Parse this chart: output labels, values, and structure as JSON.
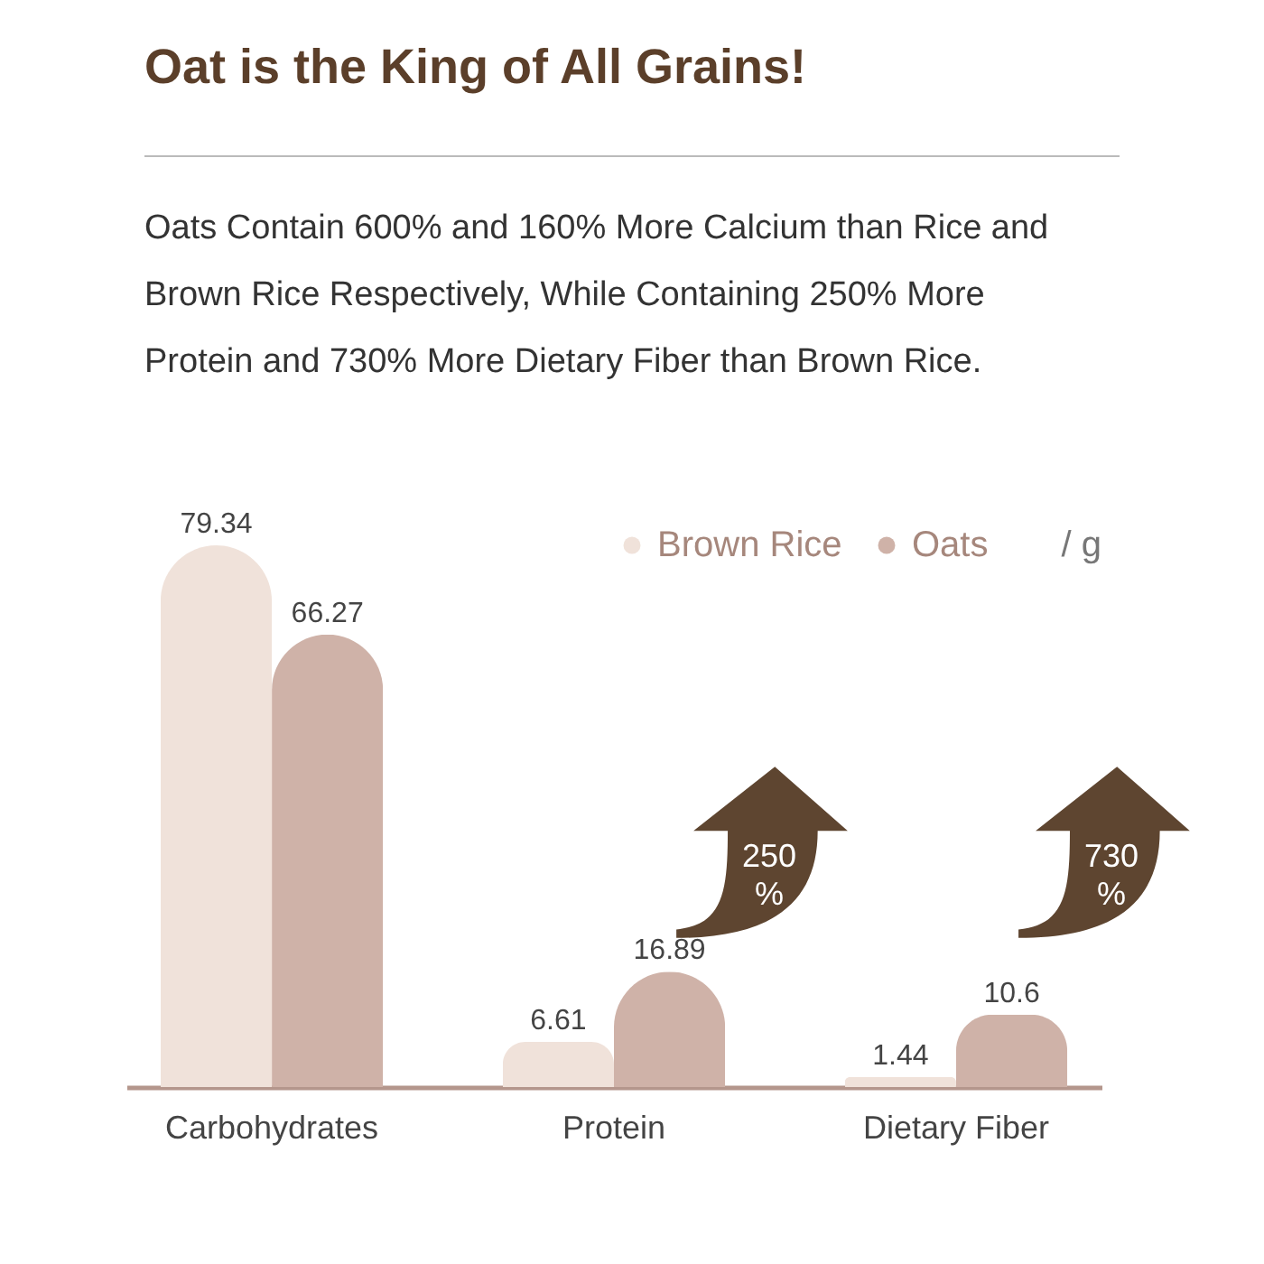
{
  "chart_data": {
    "type": "bar",
    "title": "Oat is the King of All Grains!",
    "subtitle": "Oats Contain 600% and 160% More Calcium than Rice and Brown Rice Respectively, While Containing 250% More Protein and 730% More Dietary Fiber than Brown Rice.",
    "categories": [
      "Carbohydrates",
      "Protein",
      "Dietary Fiber"
    ],
    "series": [
      {
        "name": "Brown Rice",
        "color": "#f0e2da",
        "values": [
          79.34,
          6.61,
          1.44
        ]
      },
      {
        "name": "Oats",
        "color": "#cfb2a8",
        "values": [
          66.27,
          16.89,
          10.6
        ]
      }
    ],
    "data_labels": true,
    "legend": "top right",
    "annotations": [
      "/ g",
      "250 %",
      "730 %"
    ]
  }
}
